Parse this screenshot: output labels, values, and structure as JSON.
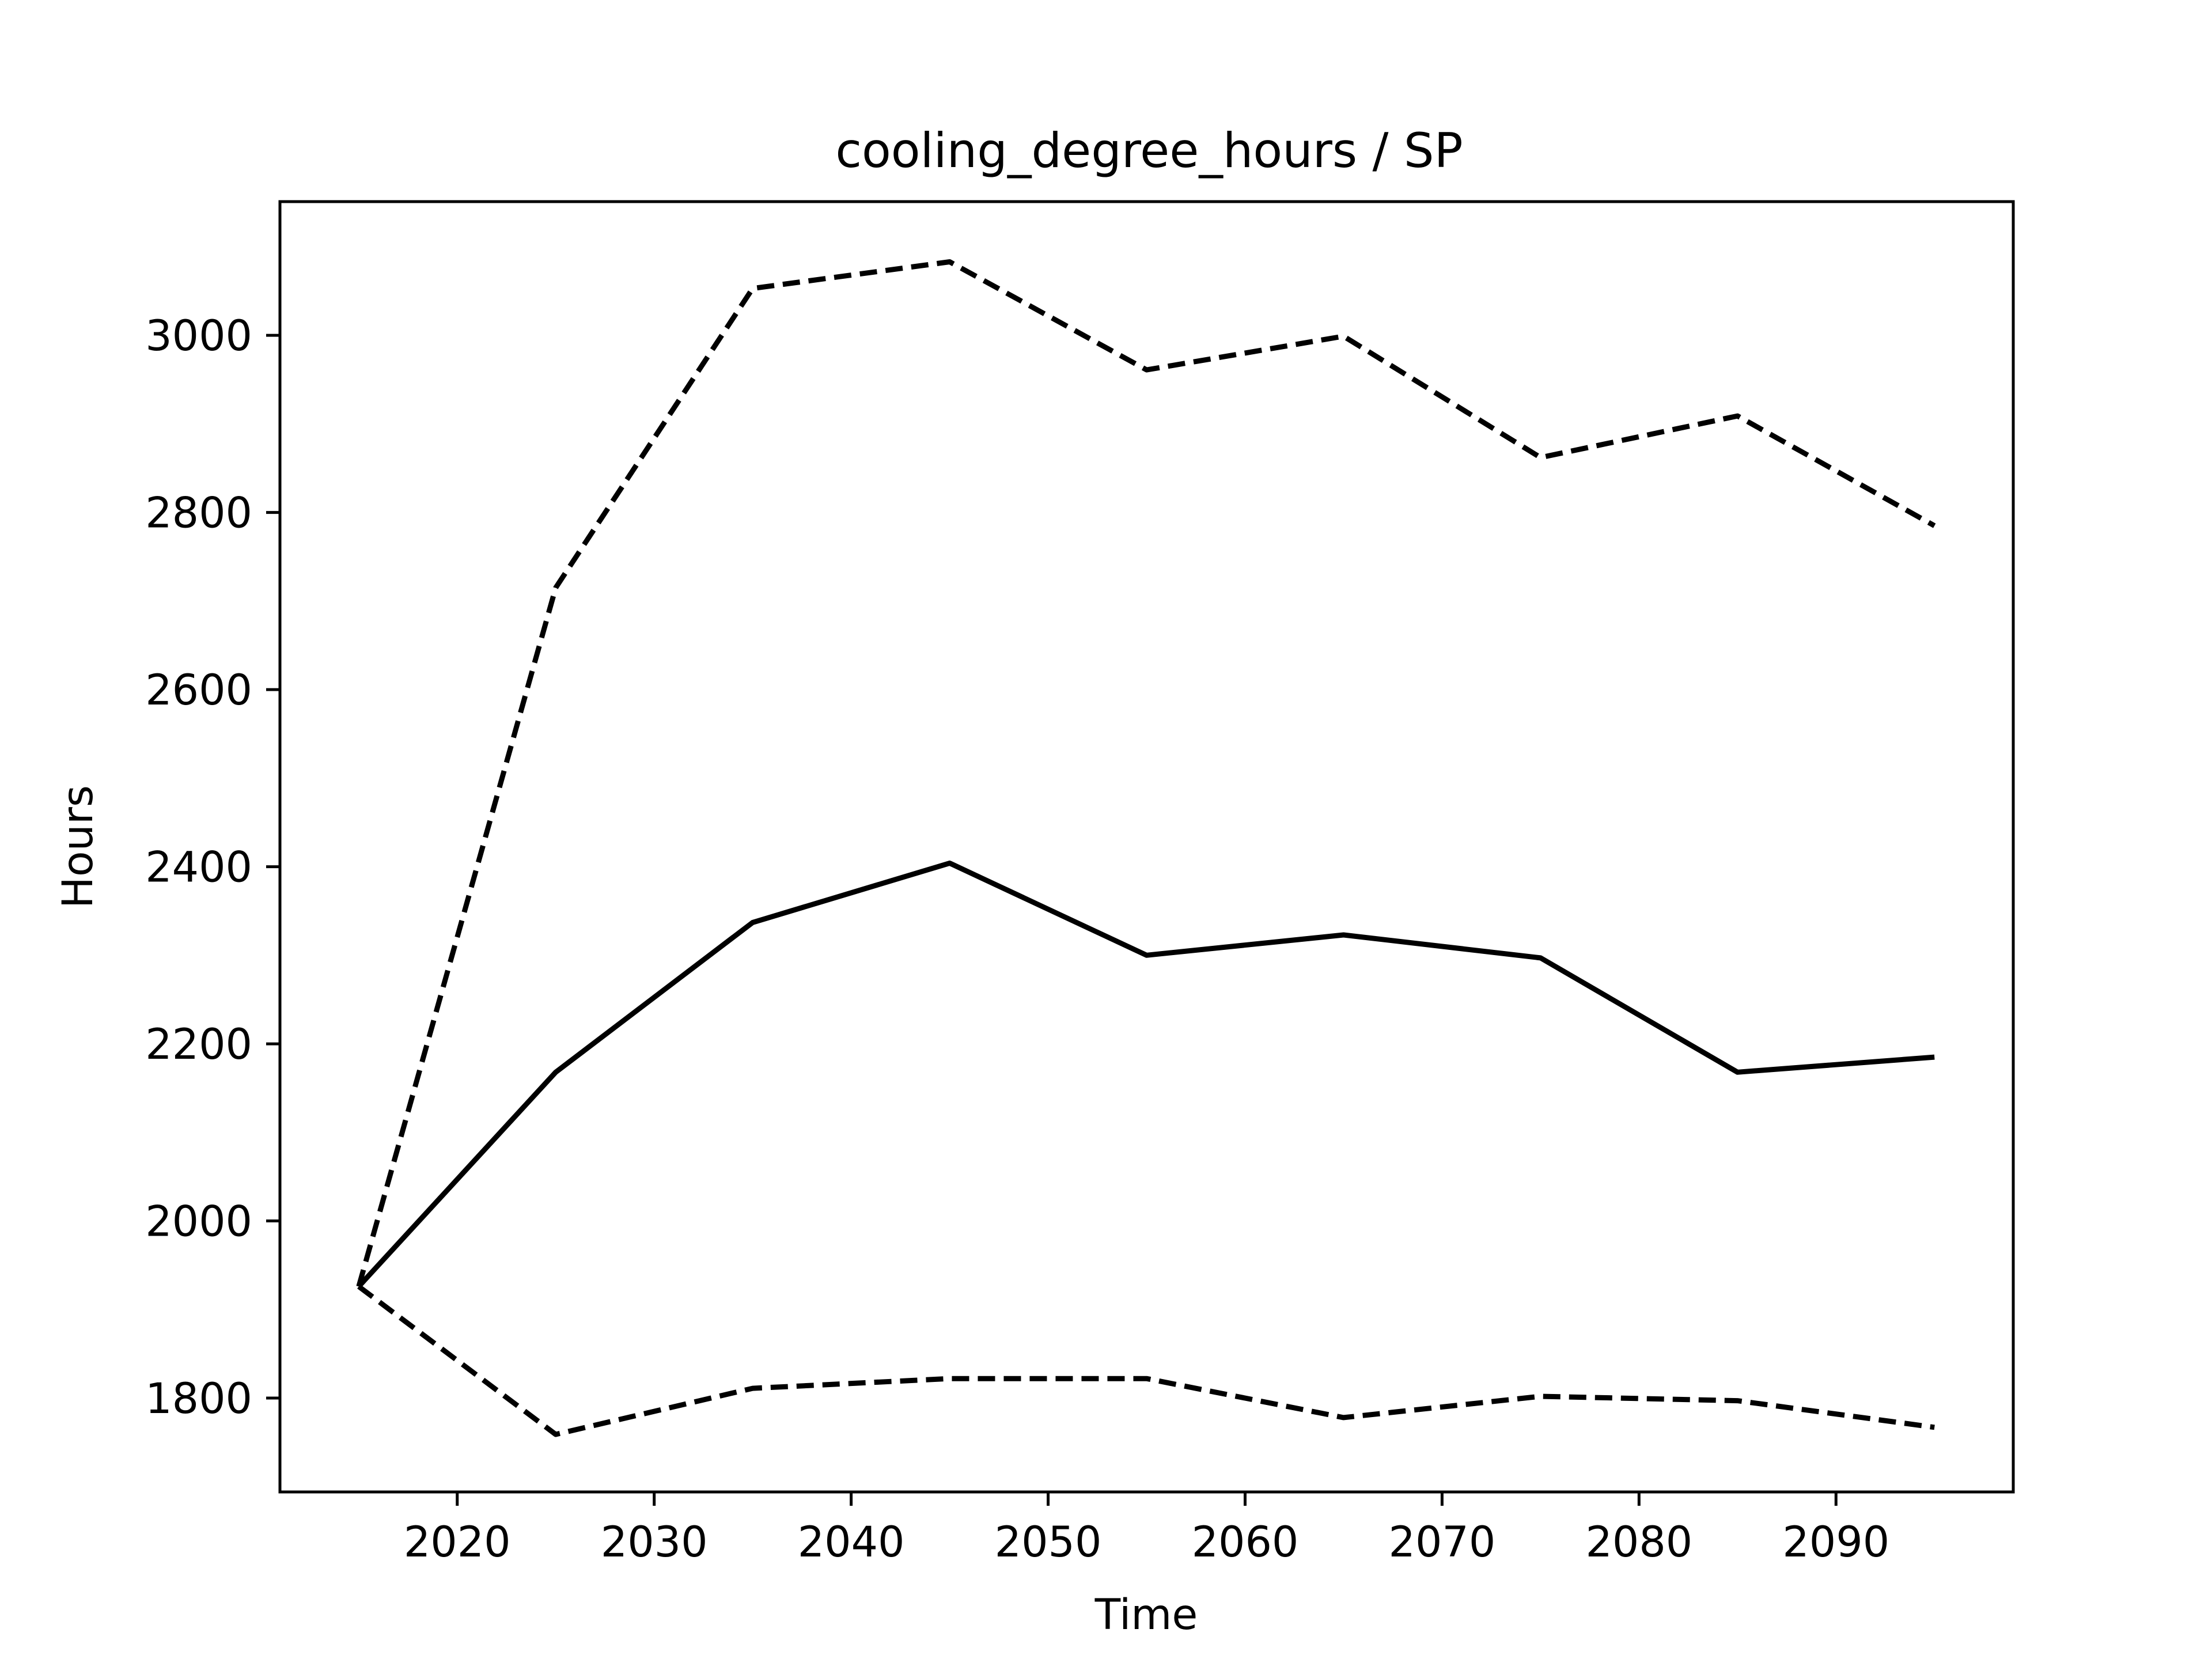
{
  "chart_data": {
    "type": "line",
    "title": "cooling_degree_hours / SP",
    "xlabel": "Time",
    "ylabel": "Hours",
    "xlim": [
      2011,
      2099
    ],
    "ylim": [
      1694,
      3151
    ],
    "xticks": [
      2020,
      2030,
      2040,
      2050,
      2060,
      2070,
      2080,
      2090
    ],
    "yticks": [
      1800,
      2000,
      2200,
      2400,
      2600,
      2800,
      3000
    ],
    "grid": false,
    "x": [
      2015,
      2025,
      2035,
      2045,
      2055,
      2065,
      2075,
      2085,
      2095
    ],
    "series": [
      {
        "style": "solid",
        "color": "#000000",
        "values": [
          1926,
          2168,
          2337,
          2404,
          2300,
          2323,
          2297,
          2168,
          2185
        ]
      },
      {
        "style": "dashed",
        "color": "#000000",
        "values": [
          1926,
          2715,
          3053,
          3083,
          2961,
          2999,
          2862,
          2909,
          2785
        ]
      },
      {
        "style": "dashed",
        "color": "#000000",
        "values": [
          1926,
          1759,
          1811,
          1822,
          1822,
          1778,
          1802,
          1797,
          1767
        ]
      }
    ]
  }
}
